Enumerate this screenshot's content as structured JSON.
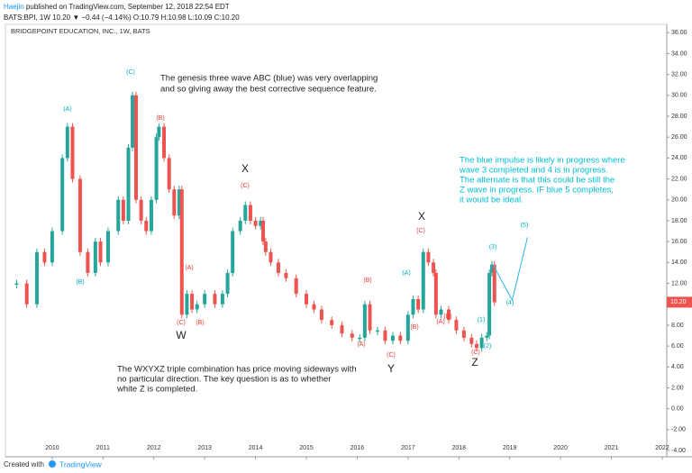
{
  "header": {
    "author": "Haejin",
    "published": "published on TradingView.com, September 12, 2018 22:54 EDT",
    "quote": "BATS:BPI, 1W  10.20 ▼ −0.44 (−4.14%)  O:10.79  H:10.98  L:10.09  C:10.20"
  },
  "footer": {
    "created": "Created with",
    "brand": "TradingView"
  },
  "chart_data": {
    "type": "bar_steps",
    "title": "BRIDGEPOINT EDUCATION, INC., 1W, BATS",
    "x": [
      2009.3,
      2009.5,
      2009.7,
      2009.85,
      2010.0,
      2010.2,
      2010.3,
      2010.4,
      2010.55,
      2010.7,
      2010.85,
      2010.95,
      2011.1,
      2011.3,
      2011.4,
      2011.5,
      2011.58,
      2011.65,
      2011.75,
      2011.85,
      2011.95,
      2012.05,
      2012.1,
      2012.2,
      2012.3,
      2012.4,
      2012.5,
      2012.55,
      2012.65,
      2012.75,
      2012.85,
      2013.0,
      2013.2,
      2013.35,
      2013.45,
      2013.55,
      2013.7,
      2013.8,
      2013.9,
      2014.0,
      2014.1,
      2014.15,
      2014.2,
      2014.3,
      2014.45,
      2014.6,
      2014.8,
      2015.0,
      2015.15,
      2015.3,
      2015.5,
      2015.7,
      2015.9,
      2016.05,
      2016.15,
      2016.25,
      2016.4,
      2016.55,
      2016.7,
      2016.85,
      2017.0,
      2017.1,
      2017.2,
      2017.3,
      2017.4,
      2017.5,
      2017.55,
      2017.65,
      2017.8,
      2017.95,
      2018.1,
      2018.25,
      2018.35,
      2018.45,
      2018.55,
      2018.6,
      2018.65,
      2018.7
    ],
    "values": [
      12,
      10,
      15,
      14,
      17,
      24,
      27,
      22,
      15,
      13,
      16,
      14,
      17,
      20,
      18,
      25,
      30,
      20,
      18,
      17,
      20,
      26,
      27,
      24,
      21,
      18.5,
      21,
      9,
      11,
      9.5,
      10,
      11,
      10,
      11,
      13,
      17,
      18,
      19.5,
      18,
      17.5,
      18,
      16,
      15,
      14,
      13,
      12.5,
      11,
      10,
      9.5,
      8.5,
      8,
      7.2,
      6.8,
      6.8,
      10,
      7.5,
      7.5,
      6.5,
      7,
      6.5,
      9,
      10.5,
      9.5,
      15,
      14,
      13,
      9,
      9.5,
      8.5,
      7.5,
      6.8,
      6.2,
      5.8,
      6.8,
      7,
      13,
      13.8,
      10.2
    ],
    "up_color": "#26a69a",
    "down_color": "#ef5350",
    "projection": {
      "x": [
        2018.67,
        2019.05,
        2019.35
      ],
      "values": [
        13.8,
        10.4,
        16.4
      ],
      "color": "#29b6f6"
    },
    "last_label": "10.20",
    "xlim": [
      2009.08,
      2022.09
    ],
    "ylim": [
      -4.6,
      36.8
    ],
    "xticks": [
      2010,
      2011,
      2012,
      2013,
      2014,
      2015,
      2016,
      2017,
      2018,
      2019,
      2020,
      2021,
      2022
    ],
    "yticks": [
      {
        "value": 36,
        "label": "36.00"
      },
      {
        "value": 34,
        "label": "34.00"
      },
      {
        "value": 32,
        "label": "32.00"
      },
      {
        "value": 30,
        "label": "30.00"
      },
      {
        "value": 28,
        "label": "28.00"
      },
      {
        "value": 26,
        "label": "26.00"
      },
      {
        "value": 24,
        "label": "24.00"
      },
      {
        "value": 22,
        "label": "22.00"
      },
      {
        "value": 20,
        "label": "20.00"
      },
      {
        "value": 18,
        "label": "18.00"
      },
      {
        "value": 16,
        "label": "16.00"
      },
      {
        "value": 14,
        "label": "14.00"
      },
      {
        "value": 12,
        "label": "12.00"
      },
      {
        "value": 10,
        "label": "10.00"
      },
      {
        "value": 8,
        "label": "8.00"
      },
      {
        "value": 6,
        "label": "6.00"
      },
      {
        "value": 4,
        "label": "4.00"
      },
      {
        "value": 2,
        "label": "2.00"
      },
      {
        "value": 0,
        "label": "0.00"
      },
      {
        "value": -2,
        "label": "-2.00"
      },
      {
        "value": -4,
        "label": "-4.00"
      }
    ],
    "grid": false,
    "notes": [
      "The genesis three wave ABC (blue) was very overlapping",
      "and so giving away the best corrective sequence feature.",
      "The blue impulse is likely in progress where",
      "wave 3 completed and 4 is in progress.",
      "The alternate is that this could be still the",
      "Z wave in progress. IF blue 5 completes,",
      "it would be ideal.",
      "The WXYXZ triple combination has price moving sideways with",
      "no particular direction. The key question is as to whether",
      "white Z is completed."
    ],
    "wave_labels": [
      "(A)",
      "(B)",
      "(C)",
      "(B)",
      "(A)",
      "(C)",
      "(B)",
      "W",
      "X",
      "(C)",
      "(B)",
      "(A)",
      "(C)",
      "Y",
      "(A)",
      "(B)",
      "X",
      "(C)",
      "(B)",
      "(A)",
      "(C)",
      "Z",
      "(1)",
      "(2)",
      "(3)",
      "(4)",
      "(5)"
    ]
  }
}
